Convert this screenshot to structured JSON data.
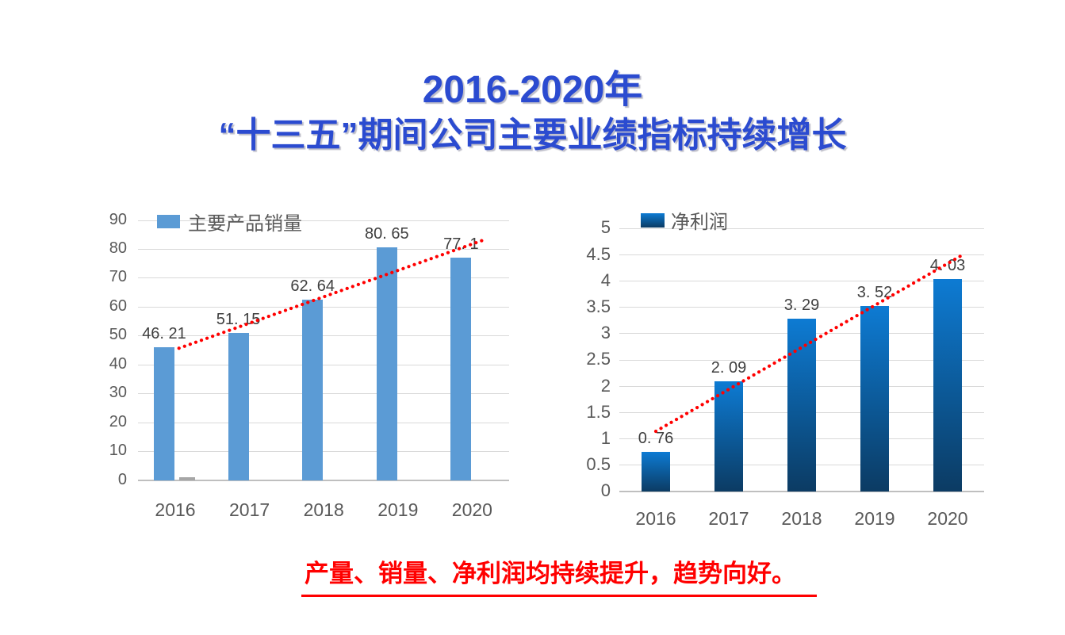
{
  "title": {
    "line1": "2016-2020年",
    "line2": "“十三五”期间公司主要业绩指标持续增长"
  },
  "footer": {
    "text": "产量、销量、净利润均持续提升，趋势向好。"
  },
  "colors": {
    "title_blue": "#2B4BD0",
    "footer_red": "#FF0000",
    "trendline_red": "#FF0000",
    "bar_light_blue": "#5B9BD5",
    "bar_gray": "#A6A6A6",
    "bar_gradient_top": "#0D7BD3",
    "bar_gradient_bottom": "#0C3B63",
    "gridline": "#D9D9D9",
    "axis_text": "#595959",
    "value_label_text": "#3F3F3F"
  },
  "chart_data": [
    {
      "type": "bar",
      "title": "",
      "legend": "主要产品销量",
      "legend_position": "top-left-inside",
      "categories": [
        "2016",
        "2017",
        "2018",
        "2019",
        "2020"
      ],
      "series": [
        {
          "name": "主要产品销量",
          "values": [
            46.21,
            51.15,
            62.64,
            80.65,
            77.1
          ],
          "value_labels": [
            "46. 21",
            "51. 15",
            "62. 64",
            "80. 65",
            "77. 1"
          ],
          "color": "#5B9BD5"
        },
        {
          "name": "",
          "values": [
            1,
            0,
            0,
            0,
            0
          ],
          "value_labels": [
            "",
            "",
            "",
            "",
            ""
          ],
          "color": "#A6A6A6"
        }
      ],
      "trendline": {
        "type": "linear",
        "style": "dotted",
        "color": "#FF0000"
      },
      "xlabel": "",
      "ylabel": "",
      "ylim": [
        0,
        90
      ],
      "ytick_step": 10,
      "grid": true
    },
    {
      "type": "bar",
      "title": "",
      "legend": "净利润",
      "legend_position": "top-left-inside",
      "categories": [
        "2016",
        "2017",
        "2018",
        "2019",
        "2020"
      ],
      "series": [
        {
          "name": "净利润",
          "values": [
            0.76,
            2.09,
            3.29,
            3.52,
            4.03
          ],
          "value_labels": [
            "0. 76",
            "2. 09",
            "3. 29",
            "3. 52",
            "4. 03"
          ],
          "gradient": [
            "#0D7BD3",
            "#0C3B63"
          ]
        }
      ],
      "trendline": {
        "type": "linear",
        "style": "dotted",
        "color": "#FF0000"
      },
      "xlabel": "",
      "ylabel": "",
      "ylim": [
        0,
        5
      ],
      "ytick_step": 0.5,
      "grid": true
    }
  ]
}
